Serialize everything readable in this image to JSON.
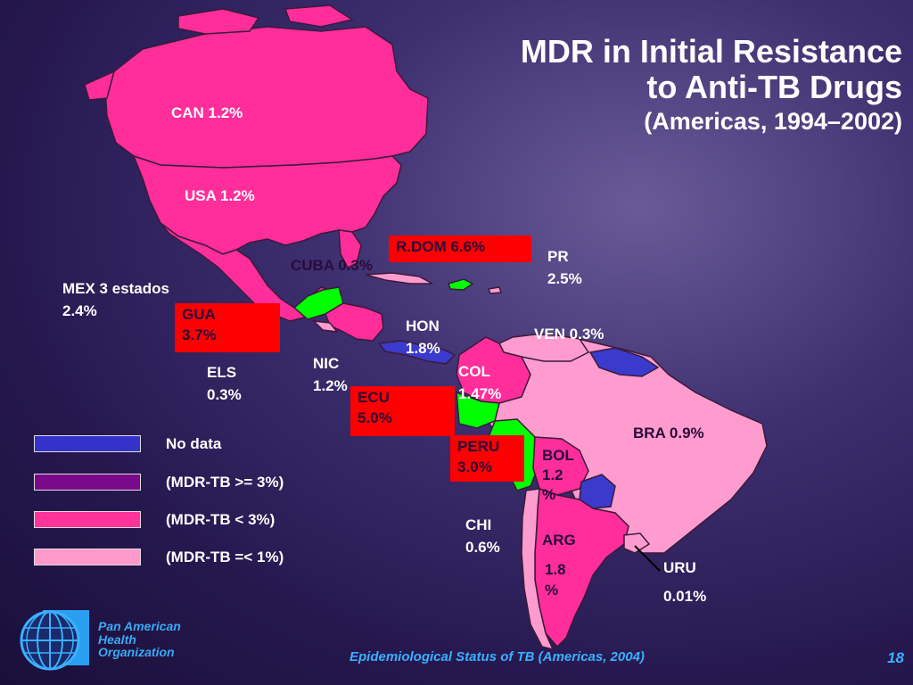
{
  "title": {
    "line1": "MDR in Initial Resistance",
    "line2": "to Anti-TB Drugs",
    "line3": "(Americas, 1994–2002)"
  },
  "labels": {
    "can": "CAN 1.2%",
    "usa": "USA 1.2%",
    "cuba": "CUBA 0.3%",
    "rdom": "R.DOM  6.6%",
    "pr_name": "PR",
    "pr_val": "2.5%",
    "mex_name": "MEX 3 estados",
    "mex_val": "2.4%",
    "gua_name": "GUA",
    "gua_val": "3.7%",
    "hon_name": "HON",
    "hon_val": "1.8%",
    "ven": "VEN 0.3%",
    "els_name": "ELS",
    "els_val": "0.3%",
    "nic_name": "NIC",
    "nic_val": "1.2%",
    "col_name": "COL",
    "col_val": "1.47%",
    "ecu_name": "ECU",
    "ecu_val": "5.0%",
    "bra": "BRA 0.9%",
    "peru_name": "PERU",
    "peru_val": "3.0%",
    "bol_name": "BOL",
    "bol_val1": "1.2",
    "bol_val2": "%",
    "chi_name": "CHI",
    "chi_val": "0.6%",
    "arg_name": "ARG",
    "arg_val1": "1.8",
    "arg_val2": "%",
    "uru_name": "URU",
    "uru_val": "0.01%"
  },
  "legend": [
    {
      "label": "No data",
      "color": "#3333cc"
    },
    {
      "label": "(MDR-TB >= 3%)",
      "color": "#7a0a8a"
    },
    {
      "label": "(MDR-TB <  3%)",
      "color": "#ff3399"
    },
    {
      "label": "(MDR-TB =< 1%)",
      "color": "#ff99cc"
    }
  ],
  "colors": {
    "high": "#ff0000",
    "mid": "#ff2e9a",
    "low": "#ff9ccf",
    "nodata": "#3a3acc",
    "green": "#00ff00",
    "accent": "#3ab0ff"
  },
  "org": {
    "line1": "Pan American",
    "line2": "Health",
    "line3": "Organization"
  },
  "footer": "Epidemiological Status of TB (Americas, 2004)",
  "page_number": "18"
}
